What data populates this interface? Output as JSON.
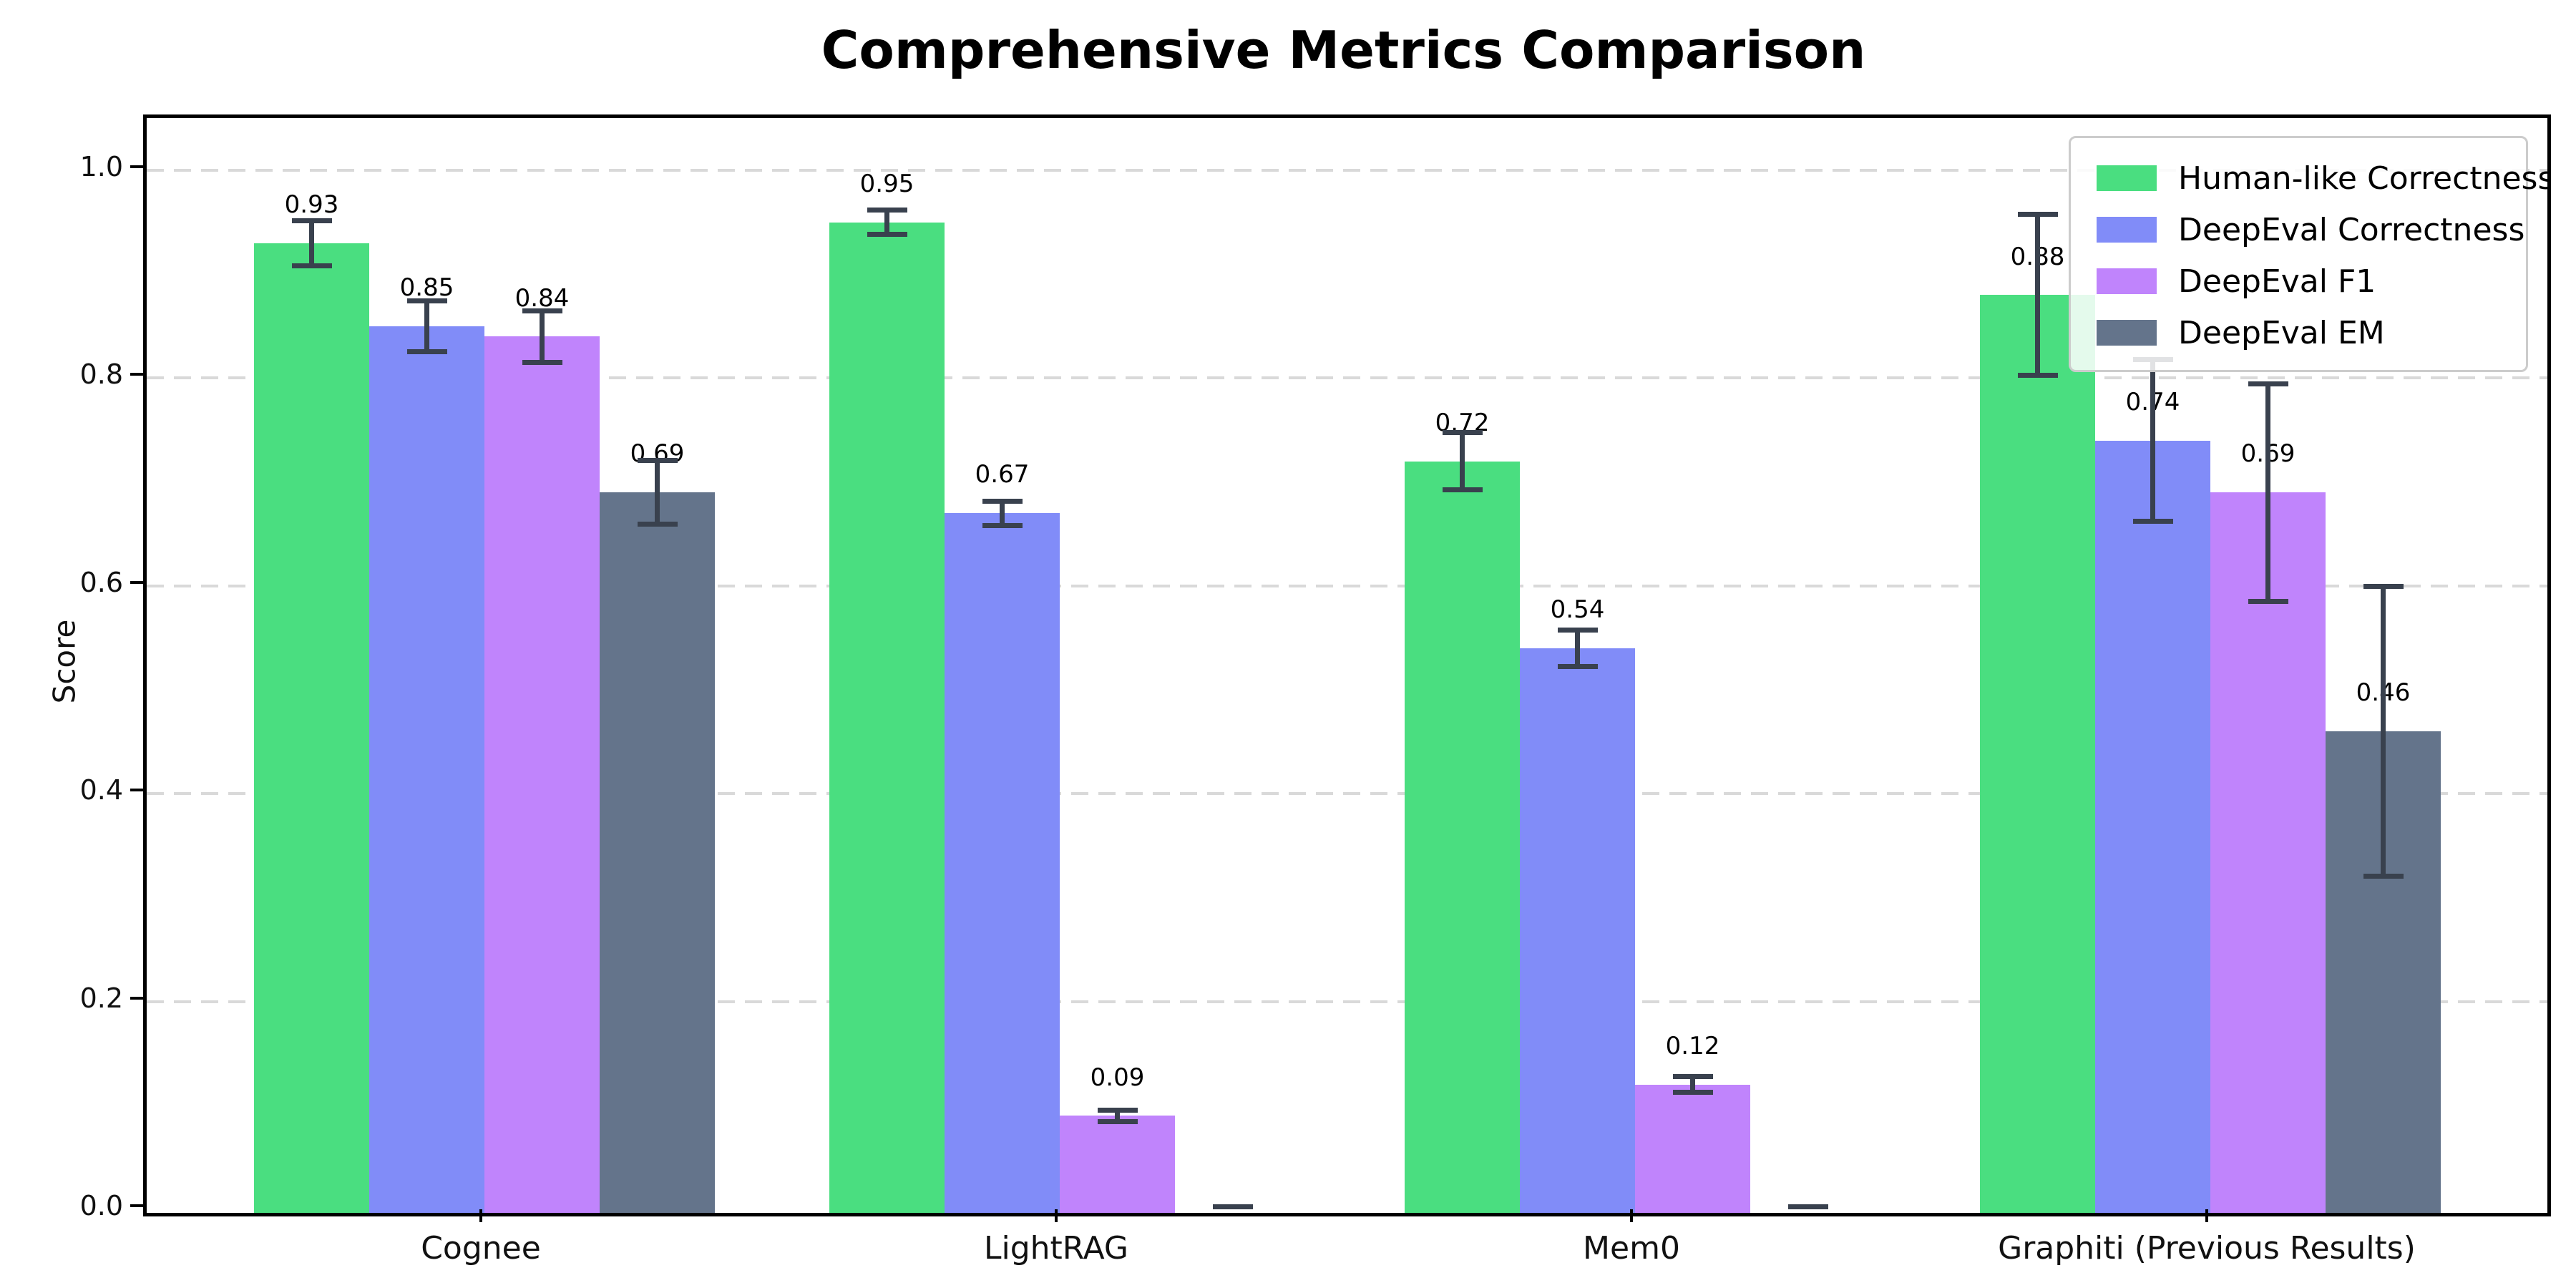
{
  "title": "Comprehensive Metrics Comparison",
  "chart_data": {
    "type": "bar",
    "title": "Comprehensive Metrics Comparison",
    "xlabel": "",
    "ylabel": "Score",
    "ylim": [
      0.0,
      1.053
    ],
    "yticks": [
      "0.0",
      "0.2",
      "0.4",
      "0.6",
      "0.8",
      "1.0"
    ],
    "grid": "horizontal dashed at 0.2 intervals",
    "legend_position": "upper right",
    "categories": [
      "Cognee",
      "LightRAG",
      "Mem0",
      "Graphiti (Previous Results)"
    ],
    "series": [
      {
        "name": "Human-like Correctness",
        "color": "#4ade80",
        "values": [
          0.93,
          0.95,
          0.72,
          0.88
        ],
        "errors": [
          0.022,
          0.012,
          0.028,
          0.078
        ],
        "labels": [
          "0.93",
          "0.95",
          "0.72",
          "0.88"
        ]
      },
      {
        "name": "DeepEval Correctness",
        "color": "#818cf8",
        "values": [
          0.85,
          0.67,
          0.54,
          0.74
        ],
        "errors": [
          0.025,
          0.012,
          0.018,
          0.078
        ],
        "labels": [
          "0.85",
          "0.67",
          "0.54",
          "0.74"
        ]
      },
      {
        "name": "DeepEval F1",
        "color": "#c084fc",
        "values": [
          0.84,
          0.09,
          0.12,
          0.69
        ],
        "errors": [
          0.025,
          0.006,
          0.008,
          0.105
        ],
        "labels": [
          "0.84",
          "0.09",
          "0.12",
          "0.69"
        ]
      },
      {
        "name": "DeepEval EM",
        "color": "#64748b",
        "values": [
          0.69,
          0.0,
          0.0,
          0.46
        ],
        "errors": [
          0.031,
          0.003,
          0.003,
          0.14
        ],
        "labels": [
          "0.69",
          "",
          "",
          "0.46"
        ]
      }
    ],
    "errorbar_color": "#39414e",
    "annotations": "value labels above each nonzero bar"
  }
}
